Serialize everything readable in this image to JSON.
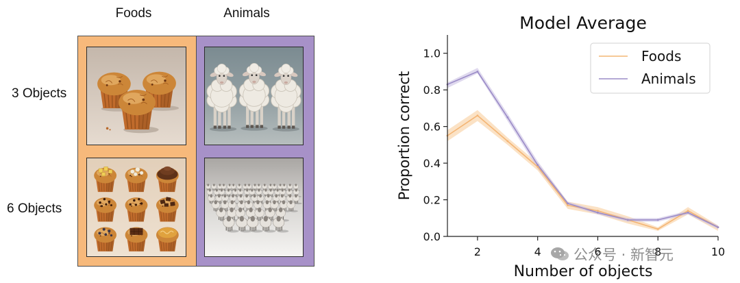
{
  "figure": {
    "column_headers": [
      "Foods",
      "Animals"
    ],
    "row_labels": [
      "3 Objects",
      "6 Objects"
    ],
    "panel_colors": {
      "foods": "#f7b97b",
      "animals": "#a791c8"
    }
  },
  "watermark": {
    "text": "公众号 · 新智元",
    "icon": "wechat-icon"
  },
  "chart_data": {
    "type": "line",
    "title": "Model Average",
    "xlabel": "Number of objects",
    "ylabel": "Proportion correct",
    "x": [
      1,
      2,
      3,
      4,
      5,
      6,
      7,
      8,
      9,
      10
    ],
    "xlim": [
      1,
      10
    ],
    "ylim": [
      0,
      1.1
    ],
    "xticks": [
      2,
      4,
      6,
      8,
      10
    ],
    "yticks": [
      0.0,
      0.2,
      0.4,
      0.6,
      0.8,
      1.0
    ],
    "ytick_labels": [
      "0.0",
      "0.2",
      "0.4",
      "0.6",
      "0.8",
      "1.0"
    ],
    "grid": false,
    "legend": "upper right",
    "series": [
      {
        "name": "Foods",
        "color": "#f4b574",
        "band_color": "#f9cf9f",
        "values": [
          0.55,
          0.66,
          0.52,
          0.38,
          0.17,
          0.14,
          0.09,
          0.04,
          0.14,
          0.05
        ],
        "lower": [
          0.52,
          0.63,
          0.5,
          0.36,
          0.15,
          0.12,
          0.07,
          0.03,
          0.12,
          0.03
        ],
        "upper": [
          0.58,
          0.69,
          0.54,
          0.4,
          0.19,
          0.16,
          0.11,
          0.05,
          0.16,
          0.06
        ]
      },
      {
        "name": "Animals",
        "color": "#9a8bc7",
        "band_color": "#c9bfe3",
        "values": [
          0.83,
          0.9,
          0.65,
          0.39,
          0.18,
          0.13,
          0.09,
          0.09,
          0.13,
          0.05
        ],
        "lower": [
          0.81,
          0.89,
          0.63,
          0.37,
          0.17,
          0.12,
          0.08,
          0.08,
          0.12,
          0.04
        ],
        "upper": [
          0.84,
          0.92,
          0.67,
          0.41,
          0.19,
          0.14,
          0.1,
          0.1,
          0.14,
          0.06
        ]
      }
    ]
  }
}
